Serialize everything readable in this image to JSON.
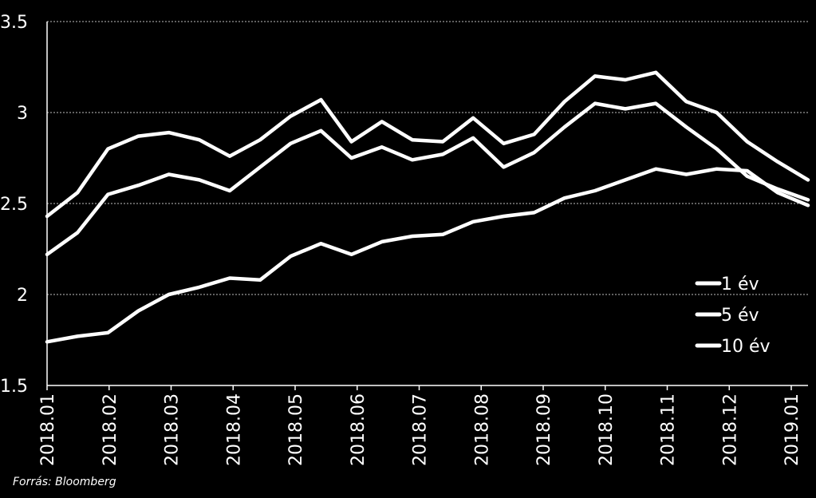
{
  "chart_data": {
    "type": "line",
    "title": "",
    "xlabel": "",
    "ylabel": "",
    "ylim": [
      1.5,
      3.5
    ],
    "yticks": [
      "1.5",
      "2",
      "2.5",
      "3",
      "3.5"
    ],
    "xticks": [
      "2018.01",
      "2018.02",
      "2018.03",
      "2018.04",
      "2018.05",
      "2018.06",
      "2018.07",
      "2018.08",
      "2018.09",
      "2018.10",
      "2018.11",
      "2018.12",
      "2019.01"
    ],
    "grid": "horizontal-dotted",
    "legend_position": "right",
    "x": [
      "2018.01",
      "2018.01 mid",
      "2018.02",
      "2018.02 mid",
      "2018.03",
      "2018.03 mid",
      "2018.04",
      "2018.04 mid",
      "2018.05",
      "2018.05 mid",
      "2018.06",
      "2018.06 mid",
      "2018.07",
      "2018.07 mid",
      "2018.08",
      "2018.08 mid",
      "2018.09",
      "2018.09 mid",
      "2018.10",
      "2018.10 mid",
      "2018.11",
      "2018.11 mid",
      "2018.12",
      "2018.12 mid",
      "2019.01",
      "2019.01 mid"
    ],
    "series": [
      {
        "name": "1 év",
        "values": [
          1.74,
          1.77,
          1.79,
          1.91,
          2.0,
          2.04,
          2.09,
          2.08,
          2.21,
          2.28,
          2.22,
          2.29,
          2.32,
          2.33,
          2.4,
          2.43,
          2.45,
          2.53,
          2.57,
          2.63,
          2.69,
          2.66,
          2.69,
          2.68,
          2.56,
          2.49
        ]
      },
      {
        "name": "5 év",
        "values": [
          2.22,
          2.34,
          2.55,
          2.6,
          2.66,
          2.63,
          2.57,
          2.7,
          2.83,
          2.9,
          2.75,
          2.81,
          2.74,
          2.77,
          2.86,
          2.7,
          2.78,
          2.92,
          3.05,
          3.02,
          3.05,
          2.92,
          2.8,
          2.65,
          2.58,
          2.52
        ]
      },
      {
        "name": "10 év",
        "values": [
          2.43,
          2.56,
          2.8,
          2.87,
          2.89,
          2.85,
          2.76,
          2.85,
          2.98,
          3.07,
          2.84,
          2.95,
          2.85,
          2.84,
          2.97,
          2.83,
          2.88,
          3.06,
          3.2,
          3.18,
          3.22,
          3.06,
          3.0,
          2.84,
          2.73,
          2.63
        ]
      }
    ]
  },
  "legend": [
    {
      "label": "1 év"
    },
    {
      "label": "5 év"
    },
    {
      "label": "10 év"
    }
  ],
  "source_text": "Forrás: Bloomberg",
  "colors": {
    "background": "#000000",
    "line": "#ffffff",
    "grid": "#bfbfbf"
  }
}
